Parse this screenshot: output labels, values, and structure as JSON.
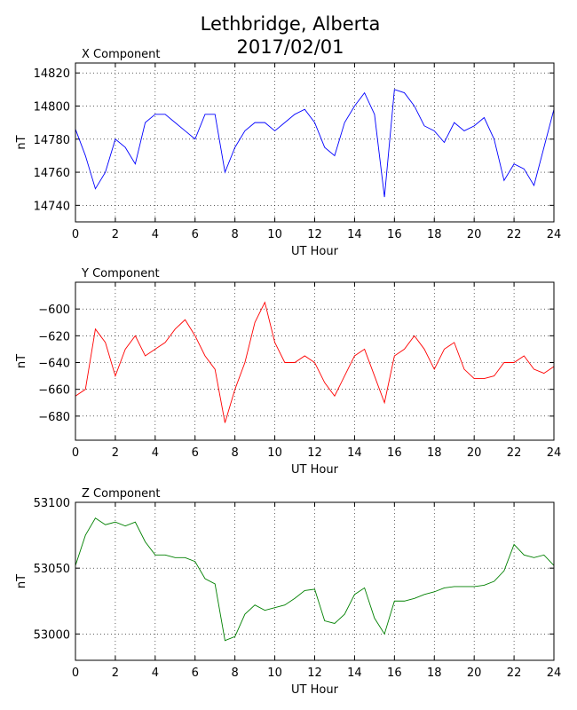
{
  "title": "Lethbridge, Alberta",
  "subtitle": "2017/02/01",
  "chart_data": [
    {
      "type": "line",
      "title": "X Component",
      "xlabel": "UT Hour",
      "ylabel": "nT",
      "color": "#0000ff",
      "grid": true,
      "x": [
        0,
        0.5,
        1,
        1.5,
        2,
        2.5,
        3,
        3.5,
        4,
        4.5,
        5,
        5.5,
        6,
        6.5,
        7,
        7.5,
        8,
        8.5,
        9,
        9.5,
        10,
        10.5,
        11,
        11.5,
        12,
        12.5,
        13,
        13.5,
        14,
        14.5,
        15,
        15.5,
        16,
        16.5,
        17,
        17.5,
        18,
        18.5,
        19,
        19.5,
        20,
        20.5,
        21,
        21.5,
        22,
        22.5,
        23,
        23.5,
        24
      ],
      "values": [
        14786,
        14770,
        14750,
        14760,
        14780,
        14775,
        14765,
        14790,
        14795,
        14795,
        14790,
        14785,
        14780,
        14795,
        14795,
        14760,
        14775,
        14785,
        14790,
        14790,
        14785,
        14790,
        14795,
        14798,
        14790,
        14775,
        14770,
        14790,
        14800,
        14808,
        14795,
        14745,
        14810,
        14808,
        14800,
        14788,
        14785,
        14778,
        14790,
        14785,
        14788,
        14793,
        14780,
        14755,
        14765,
        14762,
        14752,
        14775,
        14798
      ],
      "xlim": [
        0,
        24
      ],
      "xticks": [
        0,
        2,
        4,
        6,
        8,
        10,
        12,
        14,
        16,
        18,
        20,
        22,
        24
      ],
      "ylim": [
        14730,
        14826
      ],
      "yticks": [
        14740,
        14760,
        14780,
        14800,
        14820
      ]
    },
    {
      "type": "line",
      "title": "Y Component",
      "xlabel": "UT Hour",
      "ylabel": "nT",
      "color": "#ff0000",
      "grid": true,
      "x": [
        0,
        0.5,
        1,
        1.5,
        2,
        2.5,
        3,
        3.5,
        4,
        4.5,
        5,
        5.5,
        6,
        6.5,
        7,
        7.5,
        8,
        8.5,
        9,
        9.5,
        10,
        10.5,
        11,
        11.5,
        12,
        12.5,
        13,
        13.5,
        14,
        14.5,
        15,
        15.5,
        16,
        16.5,
        17,
        17.5,
        18,
        18.5,
        19,
        19.5,
        20,
        20.5,
        21,
        21.5,
        22,
        22.5,
        23,
        23.5,
        24
      ],
      "values": [
        -665,
        -660,
        -615,
        -625,
        -650,
        -630,
        -620,
        -635,
        -630,
        -625,
        -615,
        -608,
        -620,
        -635,
        -645,
        -685,
        -660,
        -640,
        -610,
        -595,
        -625,
        -640,
        -640,
        -635,
        -640,
        -655,
        -665,
        -650,
        -635,
        -630,
        -650,
        -670,
        -635,
        -630,
        -620,
        -630,
        -645,
        -630,
        -625,
        -645,
        -652,
        -652,
        -650,
        -640,
        -640,
        -635,
        -645,
        -648,
        -643
      ],
      "xlim": [
        0,
        24
      ],
      "xticks": [
        0,
        2,
        4,
        6,
        8,
        10,
        12,
        14,
        16,
        18,
        20,
        22,
        24
      ],
      "ylim": [
        -698,
        -580
      ],
      "yticks": [
        {
          "value": -680,
          "label": "−680"
        },
        {
          "value": -660,
          "label": "−660"
        },
        {
          "value": -640,
          "label": "−640"
        },
        {
          "value": -620,
          "label": "−620"
        },
        {
          "value": -600,
          "label": "−600"
        }
      ]
    },
    {
      "type": "line",
      "title": "Z Component",
      "xlabel": "UT Hour",
      "ylabel": "nT",
      "color": "#008000",
      "grid": true,
      "x": [
        0,
        0.5,
        1,
        1.5,
        2,
        2.5,
        3,
        3.5,
        4,
        4.5,
        5,
        5.5,
        6,
        6.5,
        7,
        7.5,
        8,
        8.5,
        9,
        9.5,
        10,
        10.5,
        11,
        11.5,
        12,
        12.5,
        13,
        13.5,
        14,
        14.5,
        15,
        15.5,
        16,
        16.5,
        17,
        17.5,
        18,
        18.5,
        19,
        19.5,
        20,
        20.5,
        21,
        21.5,
        22,
        22.5,
        23,
        23.5,
        24
      ],
      "values": [
        53052,
        53075,
        53088,
        53083,
        53085,
        53082,
        53085,
        53070,
        53060,
        53060,
        53058,
        53058,
        53055,
        53042,
        53038,
        52995,
        52998,
        53015,
        53022,
        53018,
        53020,
        53022,
        53027,
        53033,
        53034,
        53010,
        53008,
        53015,
        53030,
        53035,
        53012,
        53000,
        53025,
        53025,
        53027,
        53030,
        53032,
        53035,
        53036,
        53036,
        53036,
        53037,
        53040,
        53048,
        53068,
        53060,
        53058,
        53060,
        53052
      ],
      "xlim": [
        0,
        24
      ],
      "xticks": [
        0,
        2,
        4,
        6,
        8,
        10,
        12,
        14,
        16,
        18,
        20,
        22,
        24
      ],
      "ylim": [
        52980,
        53100
      ],
      "yticks": [
        53000,
        53050,
        53100
      ]
    }
  ]
}
